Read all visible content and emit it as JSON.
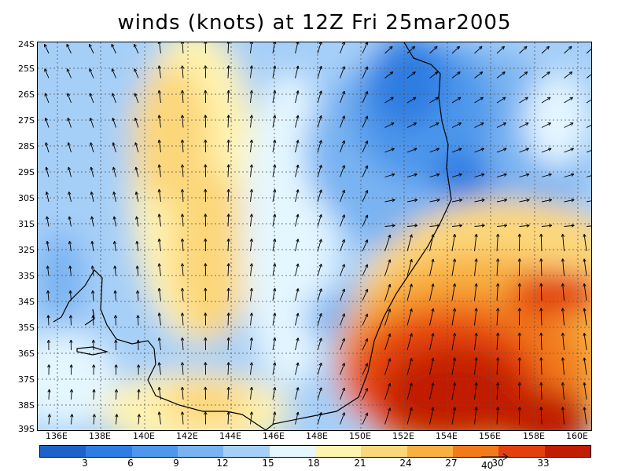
{
  "title": "winds (knots) at 12Z Fri 25mar2005",
  "lat_labels": [
    "24S",
    "25S",
    "26S",
    "27S",
    "28S",
    "29S",
    "30S",
    "31S",
    "32S",
    "33S",
    "34S",
    "35S",
    "36S",
    "37S",
    "38S",
    "39S"
  ],
  "lon_labels": [
    "136E",
    "138E",
    "140E",
    "142E",
    "144E",
    "146E",
    "148E",
    "150E",
    "152E",
    "154E",
    "156E",
    "158E",
    "160E"
  ],
  "colorbar": {
    "labels": [
      "3",
      "6",
      "9",
      "12",
      "15",
      "18",
      "21",
      "24",
      "27",
      "30",
      "33"
    ],
    "colors": [
      "#1b63c9",
      "#2f7de2",
      "#4e97ec",
      "#79b3f2",
      "#a6cff8",
      "#e4f6ff",
      "#fff3b0",
      "#fcd77a",
      "#f8b040",
      "#f27a1a",
      "#e3400f",
      "#c11d05"
    ]
  },
  "reference_vector": "40",
  "colors": {
    "background": "#ffffff",
    "coast": "#000000",
    "arrows": "#000000"
  }
}
